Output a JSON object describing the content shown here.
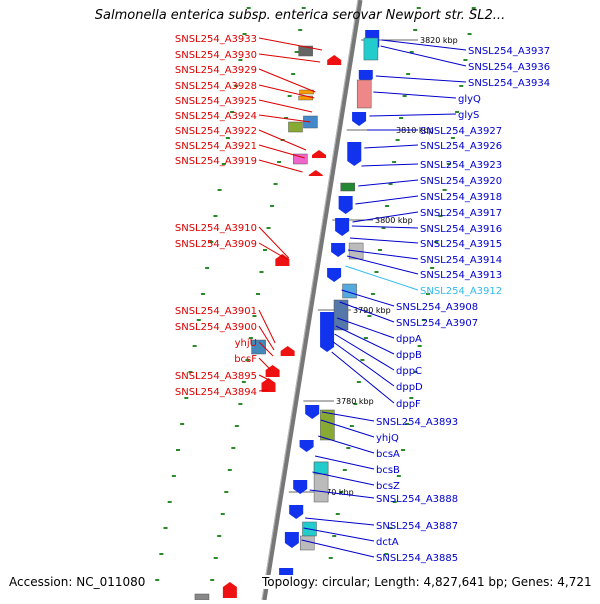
{
  "title": "Salmonella enterica subsp. enterica serovar Newport str. SL2...",
  "accession_label": "Accession: NC_011080",
  "topology_label": "Topology: circular; Length: 4,827,641 bp; Genes: 4,721",
  "colors": {
    "left_label": "#dd0000",
    "right_label": "#0000cc",
    "highlight_label": "#33bbee",
    "backbone": "#888888",
    "tick": "#2a8a2a"
  },
  "scale_labels": [
    "3820 kbp",
    "3810 kbp",
    "3800 kbp",
    "3790 kbp",
    "3780 kbp",
    "3770 kbp"
  ],
  "left_genes": [
    "SNSL254_A3933",
    "SNSL254_A3930",
    "SNSL254_A3929",
    "SNSL254_A3928",
    "SNSL254_A3925",
    "SNSL254_A3924",
    "SNSL254_A3922",
    "SNSL254_A3921",
    "SNSL254_A3919",
    "SNSL254_A3910",
    "SNSL254_A3909",
    "SNSL254_A3901",
    "SNSL254_A3900",
    "yhjU",
    "bcsF",
    "SNSL254_A3895",
    "SNSL254_A3894"
  ],
  "right_genes": [
    "SNSL254_A3937",
    "SNSL254_A3936",
    "SNSL254_A3934",
    "glyQ",
    "glyS",
    "SNSL254_A3927",
    "SNSL254_A3926",
    "SNSL254_A3923",
    "SNSL254_A3920",
    "SNSL254_A3918",
    "SNSL254_A3917",
    "SNSL254_A3916",
    "SNSL254_A3915",
    "SNSL254_A3914",
    "SNSL254_A3913",
    "SNSL254_A3912",
    "SNSL254_A3908",
    "SNSL254_A3907",
    "dppA",
    "dppB",
    "dppC",
    "dppD",
    "dppF",
    "SNSL254_A3893",
    "yhjQ",
    "bcsA",
    "bcsB",
    "bcsZ",
    "SNSL254_A3888",
    "SNSL254_A3887",
    "dctA",
    "SNSL254_A3885"
  ],
  "highlighted_gene": "SNSL254_A3912"
}
